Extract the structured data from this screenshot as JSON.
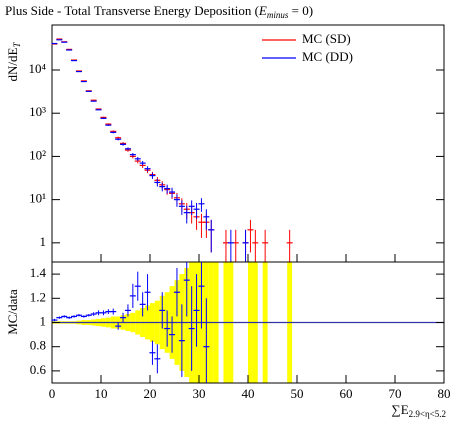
{
  "chart_data": [
    {
      "type": "errorbar",
      "title_parts": [
        "Plus Side - Total Transverse Energy Deposition (",
        "E",
        "minus",
        " = 0)"
      ],
      "ylabel_parts": [
        "dN/dE",
        "T"
      ],
      "log_y": true,
      "legend": "top-right",
      "x": [
        0.5,
        1.5,
        2.5,
        3.5,
        4.5,
        5.5,
        6.5,
        7.5,
        8.5,
        9.5,
        10.5,
        11.5,
        12.5,
        13.5,
        14.5,
        15.5,
        16.5,
        17.5,
        18.5,
        19.5,
        20.5,
        21.5,
        22.5,
        23.5,
        24.5,
        25.5,
        26.5,
        27.5,
        28.5,
        29.5,
        30.5,
        31.5,
        32.5,
        33.5,
        34.5,
        35.5,
        36.5,
        37.5,
        38.5,
        39.5,
        40.5,
        41.5,
        42.5,
        43.5,
        44.5,
        45.5,
        46.5,
        47.5,
        48.5,
        49.5
      ],
      "xlim": [
        0,
        80
      ],
      "ylim": [
        0.36,
        110000
      ],
      "yticks": [
        1,
        {
          "value": 10,
          "label": "10¹"
        },
        {
          "value": 100,
          "label": "10²"
        },
        {
          "value": 1000,
          "label": "10³"
        },
        {
          "value": 10000,
          "label": "10⁴"
        }
      ],
      "series": [
        {
          "name": "MC (SD)",
          "color": "#ff0000",
          "values": [
            40000,
            52000,
            45000,
            30000,
            17000,
            9500,
            5600,
            3300,
            2000,
            1250,
            800,
            560,
            380,
            270,
            200,
            140,
            100,
            78,
            62,
            48,
            38,
            28,
            22,
            17,
            14,
            11,
            8,
            6,
            5,
            4,
            3,
            3,
            2,
            null,
            null,
            1,
            null,
            1,
            null,
            1,
            2,
            1,
            null,
            1,
            null,
            null,
            null,
            null,
            1,
            null
          ],
          "errors": [
            200,
            230,
            210,
            170,
            130,
            97,
            75,
            57,
            45,
            35,
            28,
            24,
            19,
            16,
            14,
            12,
            10,
            9,
            8,
            7,
            6,
            5.3,
            4.7,
            4.1,
            3.7,
            3.3,
            2.8,
            2.4,
            2.2,
            2,
            1.7,
            1.7,
            1.4,
            null,
            null,
            1,
            null,
            1,
            null,
            1,
            1.4,
            1,
            null,
            1,
            null,
            null,
            null,
            null,
            1,
            null
          ]
        },
        {
          "name": "MC (DD)",
          "color": "#0000ff",
          "values": [
            41000,
            50000,
            44000,
            29000,
            16500,
            9200,
            5400,
            3200,
            1900,
            1200,
            760,
            530,
            360,
            250,
            190,
            150,
            110,
            88,
            70,
            52,
            36,
            25,
            20,
            18,
            15,
            10,
            7,
            5,
            7,
            6,
            8,
            4,
            2,
            null,
            null,
            null,
            1,
            null,
            null,
            1,
            null,
            null,
            null,
            null,
            null,
            null,
            null,
            null,
            null,
            null
          ],
          "errors": [
            200,
            220,
            210,
            170,
            130,
            96,
            73,
            57,
            44,
            35,
            28,
            23,
            19,
            16,
            14,
            12,
            10,
            9.4,
            8.4,
            7.2,
            6,
            5,
            4.5,
            4.2,
            3.9,
            3.2,
            2.6,
            2.2,
            2.6,
            2.4,
            2.8,
            2,
            1.4,
            null,
            null,
            null,
            1,
            null,
            null,
            1,
            null,
            null,
            null,
            null,
            null,
            null,
            null,
            null,
            null,
            null
          ]
        }
      ]
    },
    {
      "type": "ratio",
      "ylabel": "MC/data",
      "xlabel_parts": [
        "∑E",
        "2.9<η<5.2"
      ],
      "x": [
        0.5,
        1.5,
        2.5,
        3.5,
        4.5,
        5.5,
        6.5,
        7.5,
        8.5,
        9.5,
        10.5,
        11.5,
        12.5,
        13.5,
        14.5,
        15.5,
        16.5,
        17.5,
        18.5,
        19.5,
        20.5,
        21.5,
        22.5,
        23.5,
        24.5,
        25.5,
        26.5,
        27.5,
        28.5,
        29.5,
        30.5,
        31.5,
        32.5,
        33.5,
        34.5,
        35.5,
        36.5,
        37.5,
        38.5,
        39.5,
        40.5,
        41.5,
        42.5,
        43.5,
        44.5,
        45.5,
        46.5,
        47.5,
        48.5,
        49.5
      ],
      "xlim": [
        0,
        80
      ],
      "xticks": [
        0,
        10,
        20,
        30,
        40,
        50,
        60,
        70,
        80
      ],
      "ylim": [
        0.5,
        1.5
      ],
      "yticks": [
        0.6,
        0.8,
        1,
        1.2,
        1.4
      ],
      "reference_line": 1,
      "band": {
        "color": "#ffff00",
        "values": [
          0.01,
          0.01,
          0.01,
          0.01,
          0.01,
          0.015,
          0.02,
          0.02,
          0.025,
          0.03,
          0.035,
          0.04,
          0.05,
          0.05,
          0.06,
          0.07,
          0.08,
          0.1,
          0.12,
          0.14,
          0.16,
          0.18,
          0.22,
          0.25,
          0.3,
          0.35,
          0.4,
          0.45,
          0.5,
          0.6,
          0.7,
          0.6,
          0.7,
          0.5,
          null,
          0.7,
          0.6,
          null,
          null,
          null,
          0.6,
          0.6,
          null,
          0.6,
          null,
          null,
          null,
          null,
          0.6,
          null
        ]
      },
      "series": [
        {
          "color": "#0000ff",
          "values": [
            1.02,
            1.04,
            1.05,
            1.04,
            1.05,
            1.06,
            1.05,
            1.06,
            1.07,
            1.08,
            1.08,
            1.09,
            1.09,
            0.97,
            1.04,
            1.1,
            1.22,
            1.3,
            1.15,
            1.25,
            0.75,
            0.7,
            1.1,
            0.95,
            0.9,
            1.25,
            0.85,
            1.35,
            0.95,
            1.1,
            1.3,
            0.8,
            null,
            null,
            null,
            null,
            null,
            null,
            null,
            null,
            null,
            null,
            null,
            null,
            null,
            null,
            null,
            null,
            null,
            null
          ],
          "errors": [
            0.01,
            0.01,
            0.01,
            0.01,
            0.01,
            0.01,
            0.01,
            0.01,
            0.015,
            0.02,
            0.02,
            0.02,
            0.025,
            0.03,
            0.04,
            0.05,
            0.1,
            0.12,
            0.1,
            0.15,
            0.1,
            0.12,
            0.15,
            0.15,
            0.15,
            0.2,
            0.3,
            0.3,
            0.35,
            0.3,
            0.35,
            0.4,
            null,
            null,
            null,
            null,
            null,
            null,
            null,
            null,
            null,
            null,
            null,
            null,
            null,
            null,
            null,
            null,
            null,
            null
          ]
        }
      ]
    }
  ]
}
